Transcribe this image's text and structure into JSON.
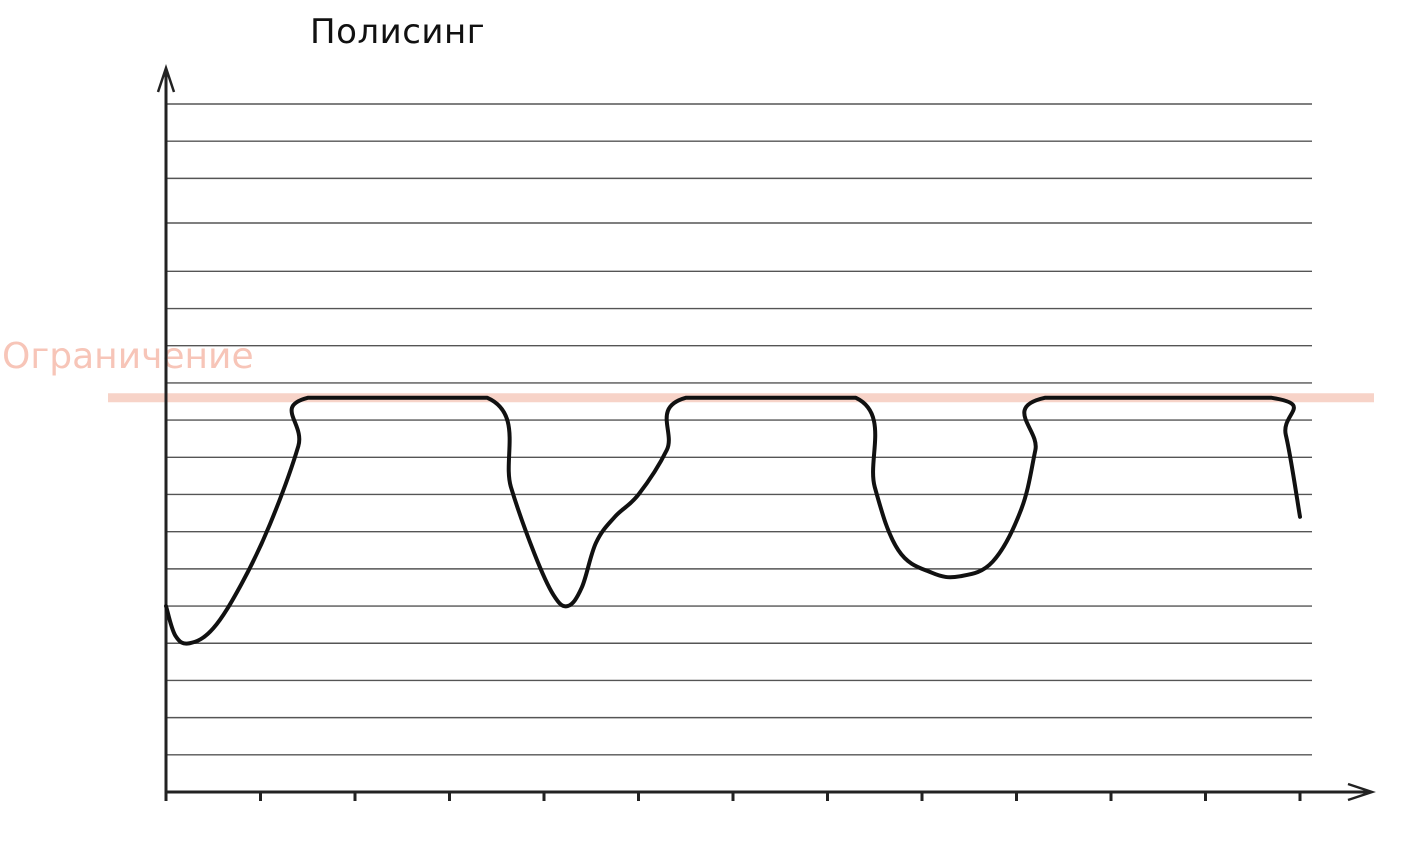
{
  "chart_data": {
    "type": "line",
    "title": "Полисинг",
    "xlabel": "",
    "ylabel": "",
    "limit": {
      "label": "Ограничение",
      "value": 10.6,
      "color": "#f7d3c8"
    },
    "xlim": [
      0,
      12
    ],
    "ylim": [
      0,
      18
    ],
    "x_ticks": [
      0,
      1,
      2,
      3,
      4,
      5,
      6,
      7,
      8,
      9,
      10,
      11,
      12
    ],
    "y_gridlines": [
      1,
      2,
      3,
      4,
      5,
      6,
      7,
      8,
      9,
      10,
      10.6,
      11,
      12,
      13,
      14,
      15.3,
      16.5,
      17.5,
      18.5
    ],
    "grid": true,
    "series": [
      {
        "name": "",
        "color": "#111111",
        "points": [
          [
            0.0,
            5.0
          ],
          [
            0.1,
            4.2
          ],
          [
            0.25,
            4.0
          ],
          [
            0.5,
            4.4
          ],
          [
            0.8,
            5.6
          ],
          [
            1.1,
            7.2
          ],
          [
            1.4,
            9.3
          ],
          [
            1.5,
            10.6
          ],
          [
            3.4,
            10.6
          ],
          [
            3.65,
            8.2
          ],
          [
            3.9,
            6.4
          ],
          [
            4.1,
            5.3
          ],
          [
            4.25,
            5.0
          ],
          [
            4.4,
            5.5
          ],
          [
            4.55,
            6.7
          ],
          [
            4.75,
            7.4
          ],
          [
            5.0,
            8.0
          ],
          [
            5.3,
            9.2
          ],
          [
            5.5,
            10.6
          ],
          [
            7.3,
            10.6
          ],
          [
            7.5,
            8.2
          ],
          [
            7.75,
            6.5
          ],
          [
            8.1,
            5.9
          ],
          [
            8.4,
            5.8
          ],
          [
            8.75,
            6.2
          ],
          [
            9.05,
            7.6
          ],
          [
            9.2,
            9.2
          ],
          [
            9.3,
            10.6
          ],
          [
            11.7,
            10.6
          ],
          [
            11.85,
            9.6
          ],
          [
            12.0,
            7.4
          ]
        ]
      }
    ]
  }
}
